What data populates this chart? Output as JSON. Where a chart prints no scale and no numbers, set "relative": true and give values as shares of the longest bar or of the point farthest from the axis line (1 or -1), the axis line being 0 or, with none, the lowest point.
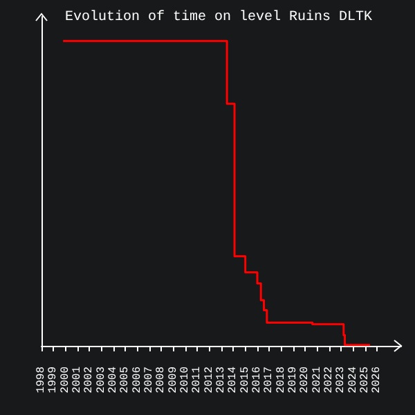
{
  "chart_data": {
    "type": "step",
    "title": "Evolution of time on level Ruins DLTK",
    "relative": true,
    "series": [
      {
        "color": "#ff0000",
        "x": [
          1999.8,
          2013.47,
          2014.1,
          2015.0,
          2016.0,
          2016.3,
          2016.55,
          2016.8,
          2020.6,
          2023.2,
          2023.3,
          2025.4
        ],
        "values": [
          1,
          0.794,
          0.294,
          0.241,
          0.205,
          0.15,
          0.117,
          0.076,
          0.071,
          0.035,
          0.003,
          0.003
        ]
      }
    ],
    "xlim": [
      1998,
      2028
    ],
    "xticks": [
      1998,
      1999,
      2000,
      2001,
      2002,
      2003,
      2004,
      2005,
      2006,
      2007,
      2008,
      2009,
      2010,
      2011,
      2012,
      2013,
      2014,
      2015,
      2016,
      2017,
      2018,
      2019,
      2020,
      2021,
      2022,
      2023,
      2024,
      2025,
      2026
    ],
    "grid": false,
    "marker": "none",
    "line_style": "solid"
  }
}
